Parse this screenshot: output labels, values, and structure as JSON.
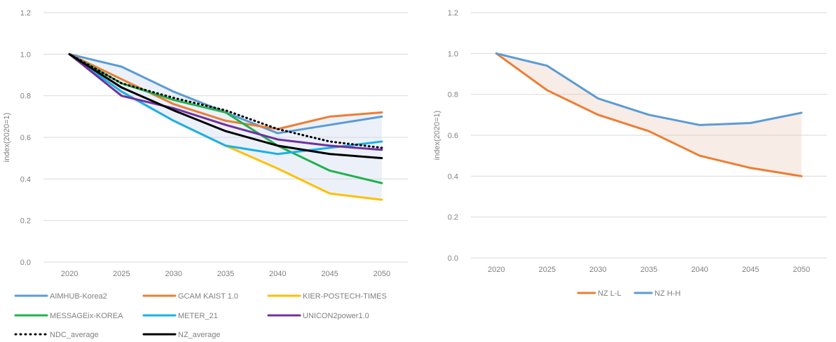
{
  "chart_data": [
    {
      "type": "line",
      "ylabel": "index(2020=1)",
      "x": [
        "2020",
        "2025",
        "2030",
        "2035",
        "2040",
        "2045",
        "2050"
      ],
      "ylim": [
        0,
        1.2
      ],
      "yticks": [
        "0.0",
        "0.2",
        "0.4",
        "0.6",
        "0.8",
        "1.0",
        "1.2"
      ],
      "grid": true,
      "legend_position": "bottom",
      "series": [
        {
          "name": "AIMHUB-Korea2",
          "color": "#5b9bd5",
          "style": "solid",
          "values": [
            1.0,
            0.94,
            0.82,
            0.72,
            0.62,
            0.66,
            0.7
          ]
        },
        {
          "name": "GCAM KAIST 1.0",
          "color": "#ed7d31",
          "style": "solid",
          "values": [
            1.0,
            0.88,
            0.76,
            0.68,
            0.64,
            0.7,
            0.72
          ]
        },
        {
          "name": "KIER-POSTECH-TIMES",
          "color": "#ffc000",
          "style": "solid",
          "values": [
            1.0,
            0.82,
            0.68,
            0.56,
            0.45,
            0.33,
            0.3
          ]
        },
        {
          "name": "MESSAGEix-KOREA",
          "color": "#21b24c",
          "style": "solid",
          "values": [
            1.0,
            0.86,
            0.78,
            0.72,
            0.56,
            0.44,
            0.38
          ]
        },
        {
          "name": "METER_21",
          "color": "#1ab0e8",
          "style": "solid",
          "values": [
            1.0,
            0.82,
            0.68,
            0.56,
            0.52,
            0.55,
            0.58
          ]
        },
        {
          "name": "UNICON2power1.0",
          "color": "#7030a0",
          "style": "solid",
          "values": [
            1.0,
            0.8,
            0.74,
            0.66,
            0.59,
            0.56,
            0.54
          ]
        },
        {
          "name": "NDC_average",
          "color": "#000000",
          "style": "dotted",
          "values": [
            1.0,
            0.86,
            0.79,
            0.73,
            0.64,
            0.58,
            0.55
          ]
        },
        {
          "name": "NZ_average",
          "color": "#000000",
          "style": "solid",
          "values": [
            1.0,
            0.84,
            0.73,
            0.63,
            0.56,
            0.52,
            0.5
          ]
        }
      ]
    },
    {
      "type": "line",
      "ylabel": "index(2020=1)",
      "x": [
        "2020",
        "2025",
        "2030",
        "2035",
        "2040",
        "2045",
        "2050"
      ],
      "ylim": [
        0,
        1.2
      ],
      "yticks": [
        "0.0",
        "0.2",
        "0.4",
        "0.6",
        "0.8",
        "1.0",
        "1.2"
      ],
      "grid": true,
      "legend_position": "bottom",
      "series": [
        {
          "name": "NZ L-L",
          "color": "#ed7d31",
          "style": "solid",
          "values": [
            1.0,
            0.82,
            0.7,
            0.62,
            0.5,
            0.44,
            0.4
          ]
        },
        {
          "name": "NZ H-H",
          "color": "#5b9bd5",
          "style": "solid",
          "values": [
            1.0,
            0.94,
            0.78,
            0.7,
            0.65,
            0.66,
            0.71
          ]
        }
      ]
    }
  ]
}
